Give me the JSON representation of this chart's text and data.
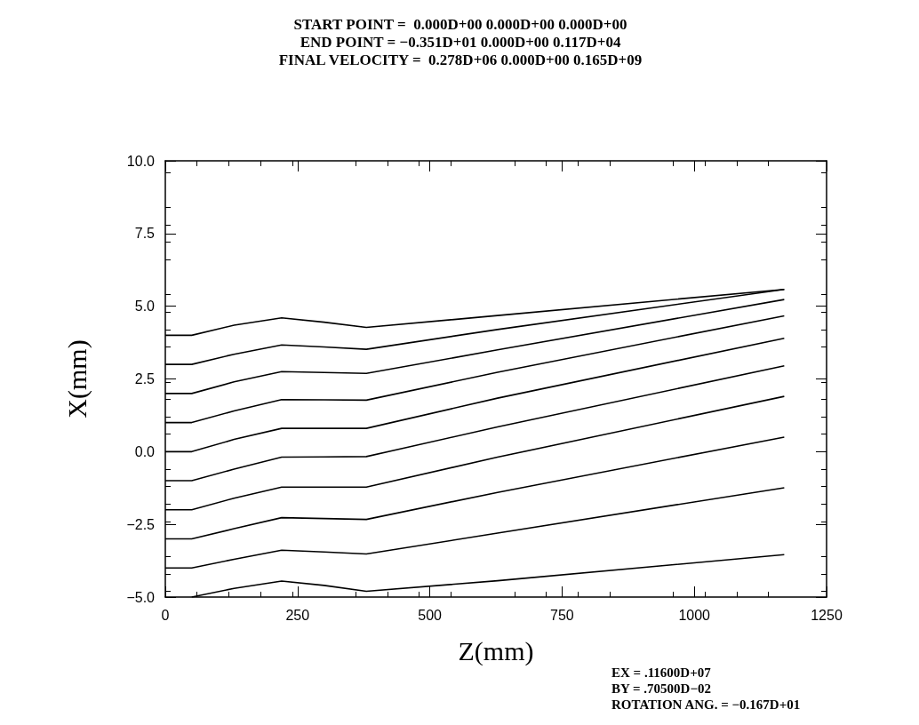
{
  "chart_data": {
    "type": "line",
    "title": "START POINT =  0.000D+00 0.000D+00 0.000D+00\nEND POINT = −0.351D+01 0.000D+00 0.117D+04\nFINAL VELOCITY =  0.278D+06 0.000D+00 0.165D+09",
    "xlabel": "Z(mm)",
    "ylabel": "X(mm)",
    "xlim": [
      0,
      1250
    ],
    "xticks": [
      0,
      250,
      500,
      750,
      1000,
      1250
    ],
    "ylim": [
      -5,
      10
    ],
    "yticks": [
      {
        "value": -5,
        "label": "−5.0"
      },
      {
        "value": -2.5,
        "label": "−2.5"
      },
      {
        "value": 0,
        "label": "0.0"
      },
      {
        "value": 2.5,
        "label": "2.5"
      },
      {
        "value": 5,
        "label": "5.0"
      },
      {
        "value": 7.5,
        "label": "7.5"
      },
      {
        "value": 10,
        "label": "10.0"
      }
    ],
    "grid": false,
    "marker": "none",
    "line_style": "solid",
    "annotations": [
      "EX = .11600D+07\nBY = .70500D−02\nROTATION ANG. = −0.167D+01"
    ],
    "series": [
      {
        "color": "#000000",
        "x": [
          0,
          50,
          130,
          220,
          300,
          380,
          628,
          1170
        ],
        "values": [
          4.0,
          4.0,
          4.35,
          4.6,
          4.45,
          4.27,
          4.68,
          5.58
        ]
      },
      {
        "color": "#000000",
        "x": [
          0,
          50,
          130,
          220,
          300,
          380,
          628,
          1170
        ],
        "values": [
          3.0,
          3.0,
          3.35,
          3.67,
          3.6,
          3.52,
          4.2,
          5.58
        ]
      },
      {
        "color": "#000000",
        "x": [
          0,
          50,
          130,
          220,
          300,
          380,
          628,
          1170
        ],
        "values": [
          2.0,
          2.0,
          2.4,
          2.75,
          2.72,
          2.69,
          3.5,
          5.23
        ]
      },
      {
        "color": "#000000",
        "x": [
          0,
          50,
          130,
          220,
          300,
          380,
          628,
          1170
        ],
        "values": [
          1.0,
          1.0,
          1.4,
          1.79,
          1.78,
          1.77,
          2.73,
          4.67
        ]
      },
      {
        "color": "#000000",
        "x": [
          0,
          50,
          130,
          220,
          300,
          380,
          628,
          1170
        ],
        "values": [
          0.0,
          0.0,
          0.42,
          0.8,
          0.8,
          0.8,
          1.84,
          3.9
        ]
      },
      {
        "color": "#000000",
        "x": [
          0,
          50,
          130,
          220,
          300,
          380,
          628,
          1170
        ],
        "values": [
          -1.0,
          -1.0,
          -0.6,
          -0.19,
          -0.18,
          -0.17,
          0.85,
          2.95
        ]
      },
      {
        "color": "#000000",
        "x": [
          0,
          50,
          130,
          220,
          300,
          380,
          628,
          1170
        ],
        "values": [
          -2.0,
          -2.0,
          -1.6,
          -1.22,
          -1.22,
          -1.22,
          -0.19,
          1.9
        ]
      },
      {
        "color": "#000000",
        "x": [
          0,
          50,
          130,
          220,
          300,
          380,
          628,
          1170
        ],
        "values": [
          -3.0,
          -3.0,
          -2.65,
          -2.27,
          -2.3,
          -2.33,
          -1.4,
          0.5
        ]
      },
      {
        "color": "#000000",
        "x": [
          0,
          50,
          130,
          220,
          300,
          380,
          628,
          1170
        ],
        "values": [
          -4.0,
          -4.0,
          -3.7,
          -3.39,
          -3.45,
          -3.52,
          -2.8,
          -1.24
        ]
      },
      {
        "color": "#000000",
        "x": [
          50,
          130,
          220,
          300,
          380,
          628,
          1170
        ],
        "values": [
          -5.0,
          -4.7,
          -4.45,
          -4.6,
          -4.8,
          -4.44,
          -3.54
        ]
      }
    ]
  }
}
